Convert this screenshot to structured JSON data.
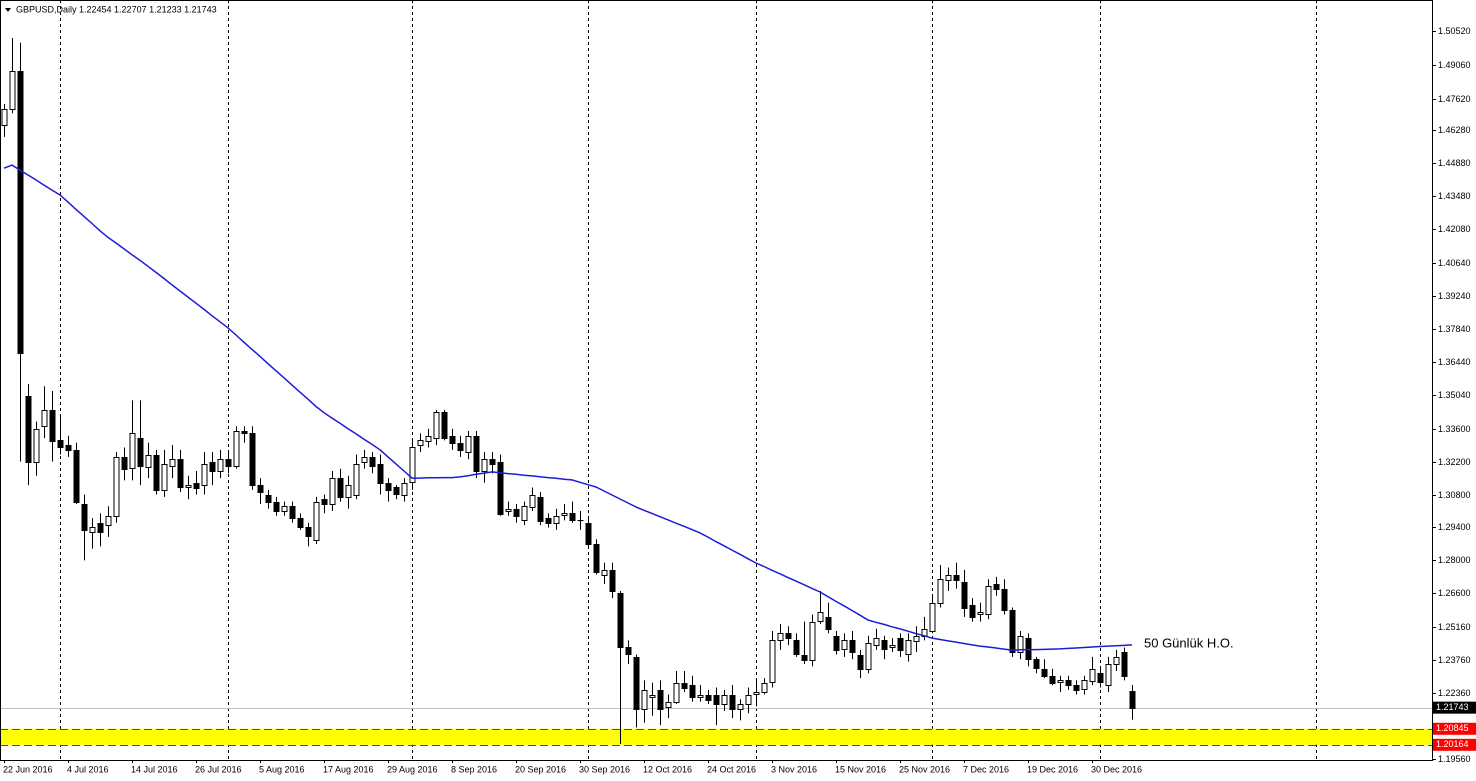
{
  "chart_data": {
    "type": "candlestick",
    "title": "GBPUSD,Daily  1.22454 1.22707 1.21233 1.21743",
    "categories": [
      "22 Jun 2016",
      null,
      null,
      null,
      null,
      null,
      null,
      null,
      "4 Jul 2016",
      null,
      null,
      null,
      null,
      null,
      null,
      null,
      "14 Jul 2016",
      null,
      null,
      null,
      null,
      null,
      null,
      null,
      "26 Jul 2016",
      null,
      null,
      null,
      null,
      null,
      null,
      null,
      "5 Aug 2016",
      null,
      null,
      null,
      null,
      null,
      null,
      null,
      "17 Aug 2016",
      null,
      null,
      null,
      null,
      null,
      null,
      null,
      "29 Aug 2016",
      null,
      null,
      null,
      null,
      null,
      null,
      null,
      "8 Sep 2016",
      null,
      null,
      null,
      null,
      null,
      null,
      null,
      "20 Sep 2016",
      null,
      null,
      null,
      null,
      null,
      null,
      null,
      "30 Sep 2016",
      null,
      null,
      null,
      null,
      null,
      null,
      null,
      "12 Oct 2016",
      null,
      null,
      null,
      null,
      null,
      null,
      null,
      "24 Oct 2016",
      null,
      null,
      null,
      null,
      null,
      null,
      null,
      "3 Nov 2016",
      null,
      null,
      null,
      null,
      null,
      null,
      null,
      "15 Nov 2016",
      null,
      null,
      null,
      null,
      null,
      null,
      null,
      "25 Nov 2016",
      null,
      null,
      null,
      null,
      null,
      null,
      null,
      "7 Dec 2016",
      null,
      null,
      null,
      null,
      null,
      null,
      null,
      "19 Dec 2016",
      null,
      null,
      null,
      null,
      null,
      null,
      null,
      "30 Dec 2016",
      null,
      null,
      null,
      null,
      null
    ],
    "candles": {
      "up_color": "#ffffff",
      "down_color": "#000000",
      "outline_color": "#000000",
      "open": [
        1.465,
        1.472,
        1.488,
        1.35,
        1.322,
        1.337,
        1.344,
        1.331,
        1.329,
        1.327,
        1.304,
        1.292,
        1.296,
        1.295,
        1.299,
        1.324,
        1.319,
        1.332,
        1.32,
        1.325,
        1.31,
        1.32,
        1.323,
        1.311,
        1.313,
        1.312,
        1.322,
        1.318,
        1.323,
        1.32,
        1.335,
        1.334,
        1.312,
        1.308,
        1.305,
        1.301,
        1.303,
        1.298,
        1.294,
        1.289,
        1.306,
        1.304,
        1.315,
        1.307,
        1.308,
        1.322,
        1.324,
        1.321,
        1.313,
        1.311,
        1.308,
        1.313,
        1.329,
        1.331,
        1.332,
        1.343,
        1.333,
        1.33,
        1.326,
        1.333,
        1.318,
        1.323,
        1.322,
        1.301,
        1.302,
        1.297,
        1.303,
        1.307,
        1.298,
        1.296,
        1.299,
        1.3,
        1.297,
        1.296,
        1.287,
        1.274,
        1.276,
        1.266,
        1.243,
        1.239,
        1.217,
        1.222,
        1.225,
        1.218,
        1.22,
        1.228,
        1.227,
        1.222,
        1.223,
        1.223,
        1.219,
        1.223,
        1.217,
        1.219,
        1.223,
        1.224,
        1.228,
        1.246,
        1.249,
        1.246,
        1.24,
        1.238,
        1.254,
        1.256,
        1.248,
        1.242,
        1.246,
        1.24,
        1.234,
        1.244,
        1.246,
        1.243,
        1.247,
        1.24,
        1.246,
        1.248,
        1.25,
        1.262,
        1.272,
        1.274,
        1.271,
        1.261,
        1.257,
        1.257,
        1.27,
        1.268,
        1.259,
        1.241,
        1.247,
        1.238,
        1.234,
        1.231,
        1.228,
        1.229,
        1.227,
        1.225,
        1.229,
        1.232,
        1.227,
        1.236,
        1.241,
        1.22454
      ],
      "high": [
        1.474,
        1.502,
        1.5,
        1.355,
        1.339,
        1.354,
        1.352,
        1.341,
        1.333,
        1.33,
        1.308,
        1.298,
        1.3,
        1.303,
        1.326,
        1.328,
        1.348,
        1.348,
        1.33,
        1.327,
        1.327,
        1.329,
        1.327,
        1.316,
        1.318,
        1.326,
        1.326,
        1.327,
        1.326,
        1.337,
        1.337,
        1.337,
        1.315,
        1.31,
        1.307,
        1.305,
        1.305,
        1.3,
        1.296,
        1.307,
        1.308,
        1.318,
        1.319,
        1.316,
        1.325,
        1.327,
        1.326,
        1.325,
        1.315,
        1.312,
        1.315,
        1.331,
        1.334,
        1.336,
        1.344,
        1.344,
        1.336,
        1.333,
        1.335,
        1.335,
        1.326,
        1.326,
        1.325,
        1.305,
        1.304,
        1.305,
        1.311,
        1.309,
        1.3,
        1.302,
        1.304,
        1.305,
        1.301,
        1.298,
        1.289,
        1.279,
        1.279,
        1.267,
        1.246,
        1.24,
        1.229,
        1.228,
        1.229,
        1.223,
        1.233,
        1.233,
        1.231,
        1.227,
        1.225,
        1.226,
        1.225,
        1.227,
        1.221,
        1.226,
        1.229,
        1.23,
        1.25,
        1.253,
        1.252,
        1.249,
        1.254,
        1.257,
        1.267,
        1.262,
        1.25,
        1.249,
        1.25,
        1.242,
        1.248,
        1.251,
        1.248,
        1.247,
        1.249,
        1.249,
        1.252,
        1.256,
        1.265,
        1.278,
        1.277,
        1.279,
        1.276,
        1.264,
        1.262,
        1.272,
        1.273,
        1.272,
        1.26,
        1.25,
        1.249,
        1.239,
        1.238,
        1.234,
        1.231,
        1.231,
        1.229,
        1.231,
        1.239,
        1.235,
        1.239,
        1.242,
        1.243,
        1.22707
      ],
      "low": [
        1.46,
        1.47,
        1.322,
        1.312,
        1.316,
        1.332,
        1.322,
        1.325,
        1.324,
        1.304,
        1.28,
        1.285,
        1.286,
        1.29,
        1.296,
        1.314,
        1.314,
        1.312,
        1.315,
        1.308,
        1.307,
        1.315,
        1.309,
        1.306,
        1.308,
        1.308,
        1.312,
        1.315,
        1.317,
        1.319,
        1.33,
        1.31,
        1.304,
        1.302,
        1.299,
        1.299,
        1.296,
        1.293,
        1.286,
        1.287,
        1.3,
        1.301,
        1.305,
        1.302,
        1.306,
        1.319,
        1.317,
        1.308,
        1.305,
        1.306,
        1.305,
        1.31,
        1.326,
        1.328,
        1.329,
        1.331,
        1.327,
        1.324,
        1.323,
        1.315,
        1.313,
        1.317,
        1.299,
        1.299,
        1.296,
        1.295,
        1.301,
        1.295,
        1.294,
        1.293,
        1.297,
        1.296,
        1.293,
        1.285,
        1.274,
        1.27,
        1.264,
        1.202,
        1.236,
        1.209,
        1.211,
        1.214,
        1.21,
        1.213,
        1.219,
        1.224,
        1.22,
        1.22,
        1.219,
        1.21,
        1.216,
        1.213,
        1.212,
        1.215,
        1.218,
        1.223,
        1.226,
        1.242,
        1.244,
        1.239,
        1.236,
        1.235,
        1.253,
        1.249,
        1.24,
        1.239,
        1.238,
        1.23,
        1.232,
        1.242,
        1.238,
        1.241,
        1.239,
        1.237,
        1.241,
        1.246,
        1.249,
        1.26,
        1.267,
        1.268,
        1.256,
        1.254,
        1.254,
        1.255,
        1.265,
        1.257,
        1.239,
        1.238,
        1.235,
        1.232,
        1.23,
        1.227,
        1.224,
        1.225,
        1.223,
        1.223,
        1.227,
        1.226,
        1.224,
        1.233,
        1.229,
        1.21233
      ],
      "close": [
        1.472,
        1.488,
        1.368,
        1.322,
        1.336,
        1.344,
        1.331,
        1.328,
        1.327,
        1.305,
        1.293,
        1.294,
        1.292,
        1.299,
        1.324,
        1.319,
        1.334,
        1.32,
        1.325,
        1.31,
        1.321,
        1.323,
        1.311,
        1.312,
        1.311,
        1.321,
        1.318,
        1.323,
        1.32,
        1.335,
        1.334,
        1.312,
        1.309,
        1.305,
        1.301,
        1.303,
        1.298,
        1.294,
        1.29,
        1.305,
        1.304,
        1.315,
        1.307,
        1.312,
        1.321,
        1.324,
        1.32,
        1.313,
        1.31,
        1.308,
        1.313,
        1.328,
        1.331,
        1.333,
        1.343,
        1.332,
        1.33,
        1.327,
        1.333,
        1.318,
        1.323,
        1.321,
        1.3,
        1.302,
        1.299,
        1.303,
        1.308,
        1.297,
        1.296,
        1.299,
        1.3,
        1.297,
        1.297,
        1.287,
        1.275,
        1.276,
        1.267,
        1.243,
        1.24,
        1.217,
        1.225,
        1.223,
        1.217,
        1.22,
        1.228,
        1.226,
        1.222,
        1.223,
        1.221,
        1.219,
        1.223,
        1.217,
        1.219,
        1.223,
        1.224,
        1.228,
        1.246,
        1.249,
        1.247,
        1.24,
        1.238,
        1.254,
        1.258,
        1.251,
        1.242,
        1.246,
        1.241,
        1.234,
        1.245,
        1.247,
        1.242,
        1.244,
        1.242,
        1.246,
        1.248,
        1.251,
        1.262,
        1.272,
        1.274,
        1.272,
        1.26,
        1.256,
        1.258,
        1.269,
        1.268,
        1.259,
        1.241,
        1.248,
        1.238,
        1.234,
        1.231,
        1.228,
        1.229,
        1.227,
        1.225,
        1.229,
        1.234,
        1.228,
        1.236,
        1.239,
        1.231,
        1.21743
      ]
    },
    "ma": {
      "label": "50 Günlük H.O.",
      "color": "#1c1cd8",
      "values": [
        1.4467,
        1.448,
        1.4459,
        1.4438,
        1.4417,
        1.4395,
        1.4374,
        1.4353,
        1.4323,
        1.4292,
        1.4262,
        1.4232,
        1.4201,
        1.4173,
        1.4149,
        1.4124,
        1.4099,
        1.4075,
        1.405,
        1.4024,
        1.3998,
        1.3971,
        1.3945,
        1.3919,
        1.3893,
        1.3867,
        1.384,
        1.3814,
        1.3788,
        1.3758,
        1.3727,
        1.3697,
        1.3667,
        1.3636,
        1.3606,
        1.3576,
        1.3545,
        1.3515,
        1.3485,
        1.3454,
        1.3428,
        1.3405,
        1.3383,
        1.336,
        1.3338,
        1.3315,
        1.3293,
        1.327,
        1.324,
        1.321,
        1.318,
        1.315,
        1.315,
        1.3151,
        1.3151,
        1.3152,
        1.3152,
        1.3155,
        1.316,
        1.3166,
        1.3171,
        1.3176,
        1.3173,
        1.3169,
        1.3166,
        1.3162,
        1.3159,
        1.3156,
        1.3152,
        1.3149,
        1.3145,
        1.3142,
        1.3132,
        1.3122,
        1.3112,
        1.3095,
        1.3078,
        1.3061,
        1.3044,
        1.3027,
        1.3013,
        1.3,
        1.2986,
        1.2972,
        1.2958,
        1.2945,
        1.2931,
        1.2917,
        1.2899,
        1.288,
        1.2862,
        1.2844,
        1.2826,
        1.2807,
        1.2789,
        1.2774,
        1.2758,
        1.2743,
        1.2727,
        1.2712,
        1.2697,
        1.2681,
        1.2666,
        1.2646,
        1.2626,
        1.2607,
        1.2587,
        1.2567,
        1.2547,
        1.2537,
        1.2528,
        1.2518,
        1.2509,
        1.2499,
        1.2489,
        1.248,
        1.247,
        1.2464,
        1.2458,
        1.2453,
        1.2447,
        1.2441,
        1.2436,
        1.2432,
        1.2428,
        1.2423,
        1.2419,
        1.242,
        1.2421,
        1.2421,
        1.2422,
        1.2423,
        1.2424,
        1.2426,
        1.2428,
        1.243,
        1.2432,
        1.2434,
        1.2436,
        1.2437,
        1.2439,
        1.2441
      ]
    },
    "current_price": {
      "value": 1.21743,
      "line_color": "#c0c0c0",
      "box_color": "#000000"
    },
    "levels": {
      "values": [
        1.20845,
        1.20164
      ],
      "color": "#ff0000",
      "zone_color": "#ffff00"
    },
    "ylim": [
      1.19518,
      1.5169
    ],
    "yticks": [
      {
        "value": 1.5052,
        "label": "1.50520"
      },
      {
        "value": 1.4906,
        "label": "1.49060"
      },
      {
        "value": 1.4762,
        "label": "1.47620"
      },
      {
        "value": 1.4628,
        "label": "1.46280"
      },
      {
        "value": 1.4488,
        "label": "1.44880"
      },
      {
        "value": 1.4348,
        "label": "1.43480"
      },
      {
        "value": 1.4208,
        "label": "1.42080"
      },
      {
        "value": 1.4064,
        "label": "1.40640"
      },
      {
        "value": 1.3924,
        "label": "1.39240"
      },
      {
        "value": 1.3784,
        "label": "1.37840"
      },
      {
        "value": 1.3644,
        "label": "1.36440"
      },
      {
        "value": 1.3504,
        "label": "1.35040"
      },
      {
        "value": 1.336,
        "label": "1.33600"
      },
      {
        "value": 1.322,
        "label": "1.32200"
      },
      {
        "value": 1.308,
        "label": "1.30800"
      },
      {
        "value": 1.294,
        "label": "1.29400"
      },
      {
        "value": 1.28,
        "label": "1.28000"
      },
      {
        "value": 1.266,
        "label": "1.26600"
      },
      {
        "value": 1.2516,
        "label": "1.25160"
      },
      {
        "value": 1.2376,
        "label": "1.23760"
      },
      {
        "value": 1.2236,
        "label": "1.22360"
      },
      {
        "value": 1.1956,
        "label": "1.19560"
      }
    ],
    "vgrid": [
      7,
      28,
      51,
      73,
      94,
      116,
      137,
      164
    ],
    "grid": true
  }
}
